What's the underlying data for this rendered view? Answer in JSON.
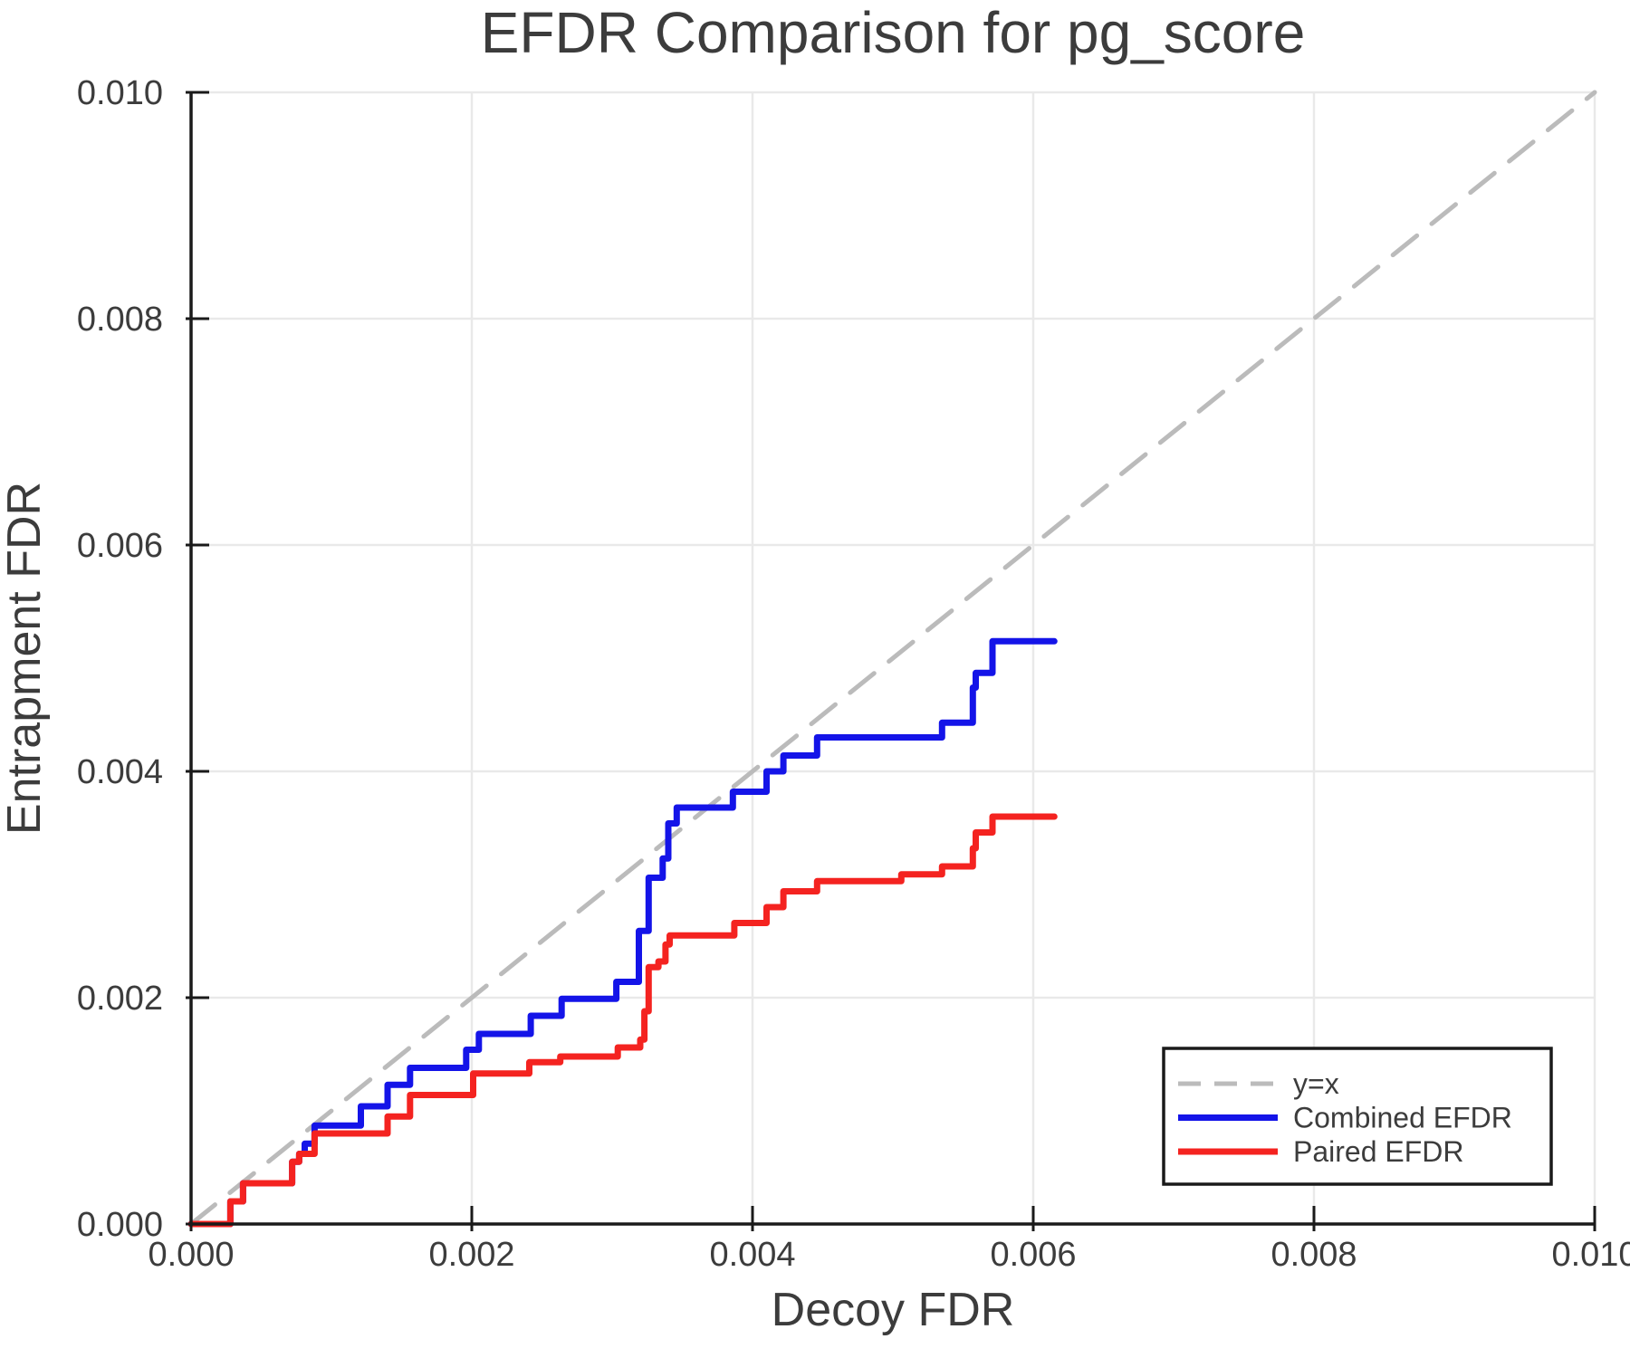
{
  "style": {
    "background": "#ffffff",
    "text_color": "#3c3c3c",
    "spine_color": "#1a1a1a",
    "grid_color": "#e9e9e9",
    "identity_color": "#bbbbbb",
    "combined_color": "#1414e8",
    "paired_color": "#f42320"
  },
  "chart_data": {
    "type": "line",
    "title": "EFDR Comparison for pg_score",
    "xlabel": "Decoy FDR",
    "ylabel": "Entrapment FDR",
    "xlim": [
      0.0,
      0.01
    ],
    "ylim": [
      0.0,
      0.01
    ],
    "xticks": [
      0.0,
      0.002,
      0.004,
      0.006,
      0.008,
      0.01
    ],
    "yticks": [
      0.0,
      0.002,
      0.004,
      0.006,
      0.008,
      0.01
    ],
    "tick_decimals": 3,
    "grid": true,
    "legend_position": "lower right",
    "series": [
      {
        "name": "y=x",
        "kind": "reference-line",
        "line_style": "dashed",
        "color_key": "identity_color",
        "points": [
          [
            0.0,
            0.0
          ],
          [
            0.01,
            0.01
          ]
        ]
      },
      {
        "name": "Combined EFDR",
        "kind": "step",
        "line_style": "solid",
        "color_key": "combined_color",
        "points": [
          [
            0.0,
            0.0
          ],
          [
            0.00028,
            0.0
          ],
          [
            0.00028,
            0.0002
          ],
          [
            0.00037,
            0.0002
          ],
          [
            0.00037,
            0.00036
          ],
          [
            0.00072,
            0.00036
          ],
          [
            0.00072,
            0.00055
          ],
          [
            0.00077,
            0.00055
          ],
          [
            0.00077,
            0.00062
          ],
          [
            0.00081,
            0.00062
          ],
          [
            0.00081,
            0.00071
          ],
          [
            0.00088,
            0.00071
          ],
          [
            0.00088,
            0.00087
          ],
          [
            0.00121,
            0.00087
          ],
          [
            0.00121,
            0.00104
          ],
          [
            0.0014,
            0.00104
          ],
          [
            0.0014,
            0.00123
          ],
          [
            0.00156,
            0.00123
          ],
          [
            0.00156,
            0.00138
          ],
          [
            0.00196,
            0.00138
          ],
          [
            0.00196,
            0.00154
          ],
          [
            0.00205,
            0.00154
          ],
          [
            0.00205,
            0.00168
          ],
          [
            0.00242,
            0.00168
          ],
          [
            0.00242,
            0.00184
          ],
          [
            0.00264,
            0.00184
          ],
          [
            0.00264,
            0.00199
          ],
          [
            0.00303,
            0.00199
          ],
          [
            0.00303,
            0.00214
          ],
          [
            0.00319,
            0.00214
          ],
          [
            0.00319,
            0.00259
          ],
          [
            0.00326,
            0.00259
          ],
          [
            0.00326,
            0.00306
          ],
          [
            0.00336,
            0.00306
          ],
          [
            0.00336,
            0.00323
          ],
          [
            0.0034,
            0.00323
          ],
          [
            0.0034,
            0.00354
          ],
          [
            0.00346,
            0.00354
          ],
          [
            0.00346,
            0.00368
          ],
          [
            0.00386,
            0.00368
          ],
          [
            0.00386,
            0.00382
          ],
          [
            0.0041,
            0.00382
          ],
          [
            0.0041,
            0.004
          ],
          [
            0.00422,
            0.004
          ],
          [
            0.00422,
            0.00414
          ],
          [
            0.00446,
            0.00414
          ],
          [
            0.00446,
            0.0043
          ],
          [
            0.00535,
            0.0043
          ],
          [
            0.00535,
            0.00443
          ],
          [
            0.00557,
            0.00443
          ],
          [
            0.00557,
            0.00474
          ],
          [
            0.00559,
            0.00474
          ],
          [
            0.00559,
            0.00487
          ],
          [
            0.00571,
            0.00487
          ],
          [
            0.00571,
            0.00515
          ],
          [
            0.00615,
            0.00515
          ]
        ]
      },
      {
        "name": "Paired EFDR",
        "kind": "step",
        "line_style": "solid",
        "color_key": "paired_color",
        "points": [
          [
            0.0,
            0.0
          ],
          [
            0.00028,
            0.0
          ],
          [
            0.00028,
            0.0002
          ],
          [
            0.00037,
            0.0002
          ],
          [
            0.00037,
            0.00036
          ],
          [
            0.00072,
            0.00036
          ],
          [
            0.00072,
            0.00055
          ],
          [
            0.00077,
            0.00055
          ],
          [
            0.00077,
            0.00062
          ],
          [
            0.00088,
            0.00062
          ],
          [
            0.00088,
            0.0008
          ],
          [
            0.0014,
            0.0008
          ],
          [
            0.0014,
            0.00095
          ],
          [
            0.00156,
            0.00095
          ],
          [
            0.00156,
            0.00114
          ],
          [
            0.00201,
            0.00114
          ],
          [
            0.00201,
            0.00133
          ],
          [
            0.00241,
            0.00133
          ],
          [
            0.00241,
            0.00143
          ],
          [
            0.00263,
            0.00143
          ],
          [
            0.00263,
            0.00148
          ],
          [
            0.00304,
            0.00148
          ],
          [
            0.00304,
            0.00156
          ],
          [
            0.0032,
            0.00156
          ],
          [
            0.0032,
            0.00163
          ],
          [
            0.00323,
            0.00163
          ],
          [
            0.00323,
            0.00188
          ],
          [
            0.00326,
            0.00188
          ],
          [
            0.00326,
            0.00227
          ],
          [
            0.00333,
            0.00227
          ],
          [
            0.00333,
            0.00232
          ],
          [
            0.00338,
            0.00232
          ],
          [
            0.00338,
            0.00247
          ],
          [
            0.00341,
            0.00247
          ],
          [
            0.00341,
            0.00255
          ],
          [
            0.00387,
            0.00255
          ],
          [
            0.00387,
            0.00266
          ],
          [
            0.0041,
            0.00266
          ],
          [
            0.0041,
            0.0028
          ],
          [
            0.00422,
            0.0028
          ],
          [
            0.00422,
            0.00294
          ],
          [
            0.00446,
            0.00294
          ],
          [
            0.00446,
            0.00303
          ],
          [
            0.00506,
            0.00303
          ],
          [
            0.00506,
            0.00309
          ],
          [
            0.00535,
            0.00309
          ],
          [
            0.00535,
            0.00316
          ],
          [
            0.00557,
            0.00316
          ],
          [
            0.00557,
            0.00332
          ],
          [
            0.00559,
            0.00332
          ],
          [
            0.00559,
            0.00346
          ],
          [
            0.00571,
            0.00346
          ],
          [
            0.00571,
            0.0036
          ],
          [
            0.00615,
            0.0036
          ]
        ]
      }
    ]
  }
}
